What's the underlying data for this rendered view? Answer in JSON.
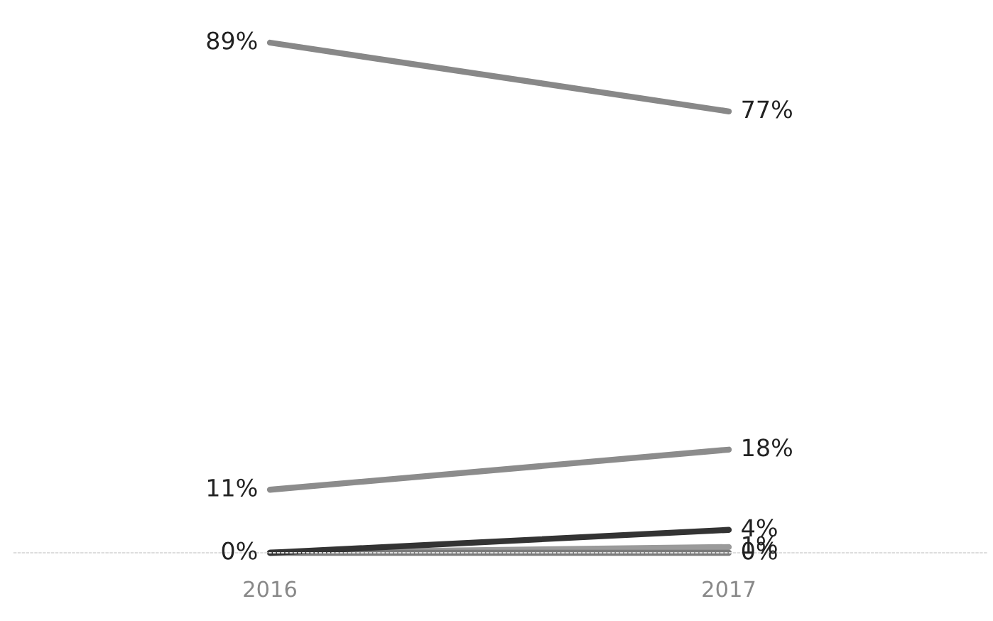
{
  "chart_data": {
    "type": "line",
    "categories": [
      "2016",
      "2017"
    ],
    "series": [
      {
        "color": "#9a9a9a",
        "values": [
          0,
          1
        ],
        "value_labels": [
          null,
          "1%"
        ]
      },
      {
        "color": "#7a7a7a",
        "values": [
          0,
          0
        ],
        "value_labels": [
          null,
          "0%"
        ]
      },
      {
        "color": "#333333",
        "values": [
          0,
          4
        ],
        "value_labels": [
          "0%",
          "4%"
        ]
      },
      {
        "color": "#8c8c8c",
        "values": [
          11,
          18
        ],
        "value_labels": [
          "11%",
          "18%"
        ]
      },
      {
        "color": "#888888",
        "values": [
          89,
          77
        ],
        "value_labels": [
          "89%",
          "77%"
        ]
      }
    ],
    "marker": "none",
    "line_style": "solid",
    "grid": false,
    "legend": false
  }
}
